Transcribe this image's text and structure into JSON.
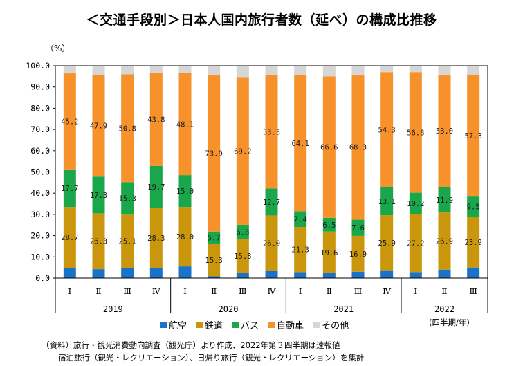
{
  "title": "＜交通手段別＞日本人国内旅行者数（延べ）の構成比推移",
  "y_unit": "（%）",
  "period_note": "(四半期/年)",
  "source_lines": [
    "（資料）旅行・観光消費動向調査（観光庁）より作成、2022年第３四半期は速報値",
    "宿泊旅行（観光・レクリエーション）、日帰り旅行（観光・レクリエーション）を集計"
  ],
  "legend": [
    {
      "name": "航空",
      "color": "#1a73c9"
    },
    {
      "name": "鉄道",
      "color": "#c9960c"
    },
    {
      "name": "バス",
      "color": "#1aa64a"
    },
    {
      "name": "自動車",
      "color": "#f7922b"
    },
    {
      "name": "その他",
      "color": "#d6d6d6"
    }
  ],
  "chart_data": {
    "type": "bar",
    "stacked": true,
    "title": "＜交通手段別＞日本人国内旅行者数（延べ）の構成比推移",
    "ylabel": "（%）",
    "xlabel": "(四半期/年)",
    "ylim": [
      0,
      100
    ],
    "yticks": [
      "0.0",
      "10.0",
      "20.0",
      "30.0",
      "40.0",
      "50.0",
      "60.0",
      "70.0",
      "80.0",
      "90.0",
      "100.0"
    ],
    "categories": [
      "Ⅰ",
      "Ⅱ",
      "Ⅲ",
      "Ⅳ",
      "Ⅰ",
      "Ⅱ",
      "Ⅲ",
      "Ⅳ",
      "Ⅰ",
      "Ⅱ",
      "Ⅲ",
      "Ⅳ",
      "Ⅰ",
      "Ⅱ",
      "Ⅲ"
    ],
    "years": [
      {
        "label": "2019",
        "count": 4
      },
      {
        "label": "2020",
        "count": 4
      },
      {
        "label": "2021",
        "count": 4
      },
      {
        "label": "2022",
        "count": 3
      }
    ],
    "series": [
      {
        "name": "航空",
        "color": "#1a73c9",
        "show_labels": false,
        "values": [
          4.8,
          4.2,
          4.8,
          4.8,
          5.5,
          0.9,
          2.5,
          3.5,
          2.8,
          2.3,
          3.0,
          3.7,
          2.8,
          4.0,
          5.0
        ]
      },
      {
        "name": "鉄道",
        "color": "#c9960c",
        "show_labels": true,
        "values": [
          28.7,
          26.3,
          25.1,
          28.3,
          28.0,
          15.3,
          15.8,
          26.0,
          21.3,
          19.6,
          16.9,
          25.9,
          27.2,
          26.9,
          23.9
        ]
      },
      {
        "name": "バス",
        "color": "#1aa64a",
        "show_labels": true,
        "values": [
          17.7,
          17.3,
          15.3,
          19.7,
          15.0,
          5.7,
          6.8,
          12.7,
          7.4,
          6.5,
          7.6,
          13.1,
          10.2,
          11.9,
          9.5
        ]
      },
      {
        "name": "自動車",
        "color": "#f7922b",
        "show_labels": true,
        "values": [
          45.2,
          47.9,
          50.8,
          43.8,
          48.1,
          73.9,
          69.2,
          53.3,
          64.1,
          66.6,
          68.3,
          54.3,
          56.8,
          53.0,
          57.3
        ]
      },
      {
        "name": "その他",
        "color": "#d6d6d6",
        "show_labels": false,
        "values": [
          3.6,
          4.3,
          4.0,
          3.4,
          3.4,
          4.2,
          5.7,
          4.5,
          4.4,
          5.0,
          4.2,
          3.0,
          3.0,
          4.2,
          4.3
        ]
      }
    ],
    "grid": false,
    "legend_position": "bottom"
  }
}
